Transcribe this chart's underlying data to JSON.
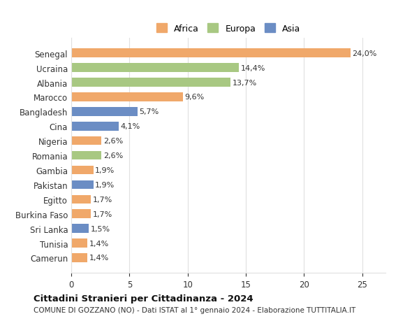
{
  "categories": [
    "Senegal",
    "Ucraina",
    "Albania",
    "Marocco",
    "Bangladesh",
    "Cina",
    "Nigeria",
    "Romania",
    "Gambia",
    "Pakistan",
    "Egitto",
    "Burkina Faso",
    "Sri Lanka",
    "Tunisia",
    "Camerun"
  ],
  "values": [
    24.0,
    14.4,
    13.7,
    9.6,
    5.7,
    4.1,
    2.6,
    2.6,
    1.9,
    1.9,
    1.7,
    1.7,
    1.5,
    1.4,
    1.4
  ],
  "labels": [
    "24,0%",
    "14,4%",
    "13,7%",
    "9,6%",
    "5,7%",
    "4,1%",
    "2,6%",
    "2,6%",
    "1,9%",
    "1,9%",
    "1,7%",
    "1,7%",
    "1,5%",
    "1,4%",
    "1,4%"
  ],
  "continents": [
    "Africa",
    "Europa",
    "Europa",
    "Africa",
    "Asia",
    "Asia",
    "Africa",
    "Europa",
    "Africa",
    "Asia",
    "Africa",
    "Africa",
    "Asia",
    "Africa",
    "Africa"
  ],
  "colors": {
    "Africa": "#F0A86A",
    "Europa": "#A8C882",
    "Asia": "#6B8DC4"
  },
  "legend_colors": {
    "Africa": "#F0A86A",
    "Europa": "#A8C882",
    "Asia": "#6B8DC4"
  },
  "xlim": [
    0,
    27
  ],
  "xticks": [
    0,
    5,
    10,
    15,
    20,
    25
  ],
  "title": "Cittadini Stranieri per Cittadinanza - 2024",
  "subtitle": "COMUNE DI GOZZANO (NO) - Dati ISTAT al 1° gennaio 2024 - Elaborazione TUTTITALIA.IT",
  "background_color": "#ffffff",
  "grid_color": "#e0e0e0",
  "bar_height": 0.6
}
